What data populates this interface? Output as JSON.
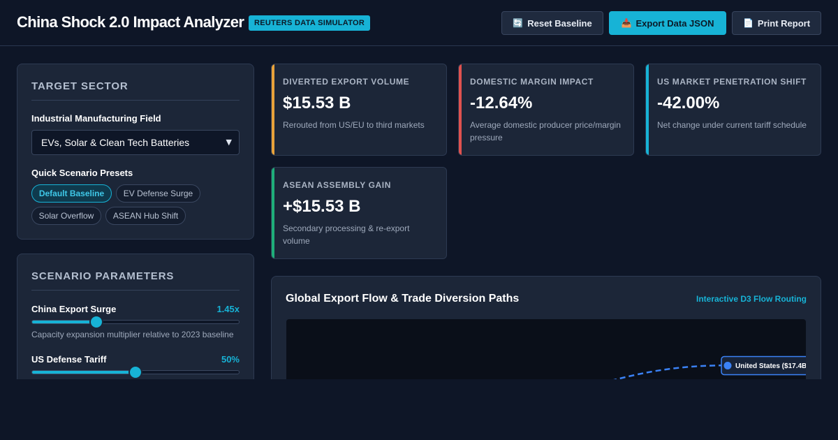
{
  "header": {
    "title": "China Shock 2.0 Impact Analyzer",
    "badge": "REUTERS DATA SIMULATOR",
    "buttons": [
      {
        "icon": "refresh-icon",
        "glyph": "🔄",
        "label": "Reset Baseline"
      },
      {
        "icon": "export-icon",
        "glyph": "📥",
        "label": "Export Data JSON"
      },
      {
        "icon": "document-icon",
        "glyph": "📄",
        "label": "Print Report"
      }
    ]
  },
  "sector": {
    "title": "TARGET SECTOR",
    "field_label": "Industrial Manufacturing Field",
    "selected": "EVs, Solar & Clean Tech Batteries",
    "presets_label": "Quick Scenario Presets",
    "presets": [
      "Default Baseline",
      "EV Defense Surge",
      "Solar Overflow",
      "ASEAN Hub Shift"
    ],
    "active_preset": "Default Baseline"
  },
  "parameters": {
    "title": "SCENARIO PARAMETERS",
    "items": [
      {
        "label": "China Export Surge",
        "value": "1.45x",
        "level": 0.31,
        "help": "Capacity expansion multiplier relative to 2023 baseline"
      },
      {
        "label": "US Defense Tariff",
        "value": "50%",
        "level": 0.5
      }
    ]
  },
  "kpis": [
    {
      "label": "DIVERTED EXPORT VOLUME",
      "value": "$15.53 B",
      "sub": "Rerouted from US/EU to third markets",
      "color": "#e8a23a"
    },
    {
      "label": "DOMESTIC MARGIN IMPACT",
      "value": "-12.64%",
      "sub": "Average domestic producer price/margin pressure",
      "color": "#e0524f"
    },
    {
      "label": "US MARKET PENETRATION SHIFT",
      "value": "-42.00%",
      "sub": "Net change under current tariff schedule",
      "color": "#17b3d6"
    },
    {
      "label": "ASEAN ASSEMBLY GAIN",
      "value": "+$15.53 B",
      "sub": "Secondary processing & re-export volume",
      "color": "#1fae7a"
    }
  ],
  "flow": {
    "title": "Global Export Flow & Trade Diversion Paths",
    "link": "Interactive D3 Flow Routing",
    "nodes": [
      {
        "label": "United States ($17.4B",
        "color": "#3b82f6"
      }
    ]
  }
}
